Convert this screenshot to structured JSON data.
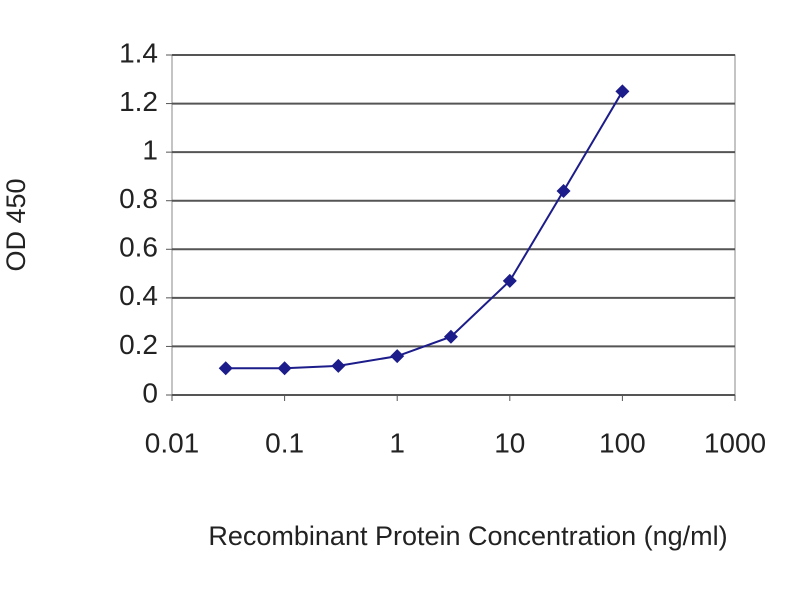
{
  "chart_data": {
    "type": "line",
    "x_label": "Recombinant Protein Concentration (ng/ml)",
    "y_label": "OD 450",
    "xscale": "log",
    "xlim": [
      0.01,
      1000
    ],
    "xticks": [
      0.01,
      0.1,
      1,
      10,
      100,
      1000
    ],
    "ylim": [
      0,
      1.4
    ],
    "yticks": [
      0,
      0.2,
      0.4,
      0.6,
      0.8,
      1,
      1.2,
      1.4
    ],
    "grid": true,
    "x": [
      0.03,
      0.1,
      0.3,
      1,
      3,
      10,
      30,
      100
    ],
    "series": [
      {
        "name": "OD",
        "color": "#1c1c8a",
        "values": [
          0.11,
          0.11,
          0.12,
          0.16,
          0.24,
          0.47,
          0.84,
          1.25
        ]
      }
    ]
  }
}
